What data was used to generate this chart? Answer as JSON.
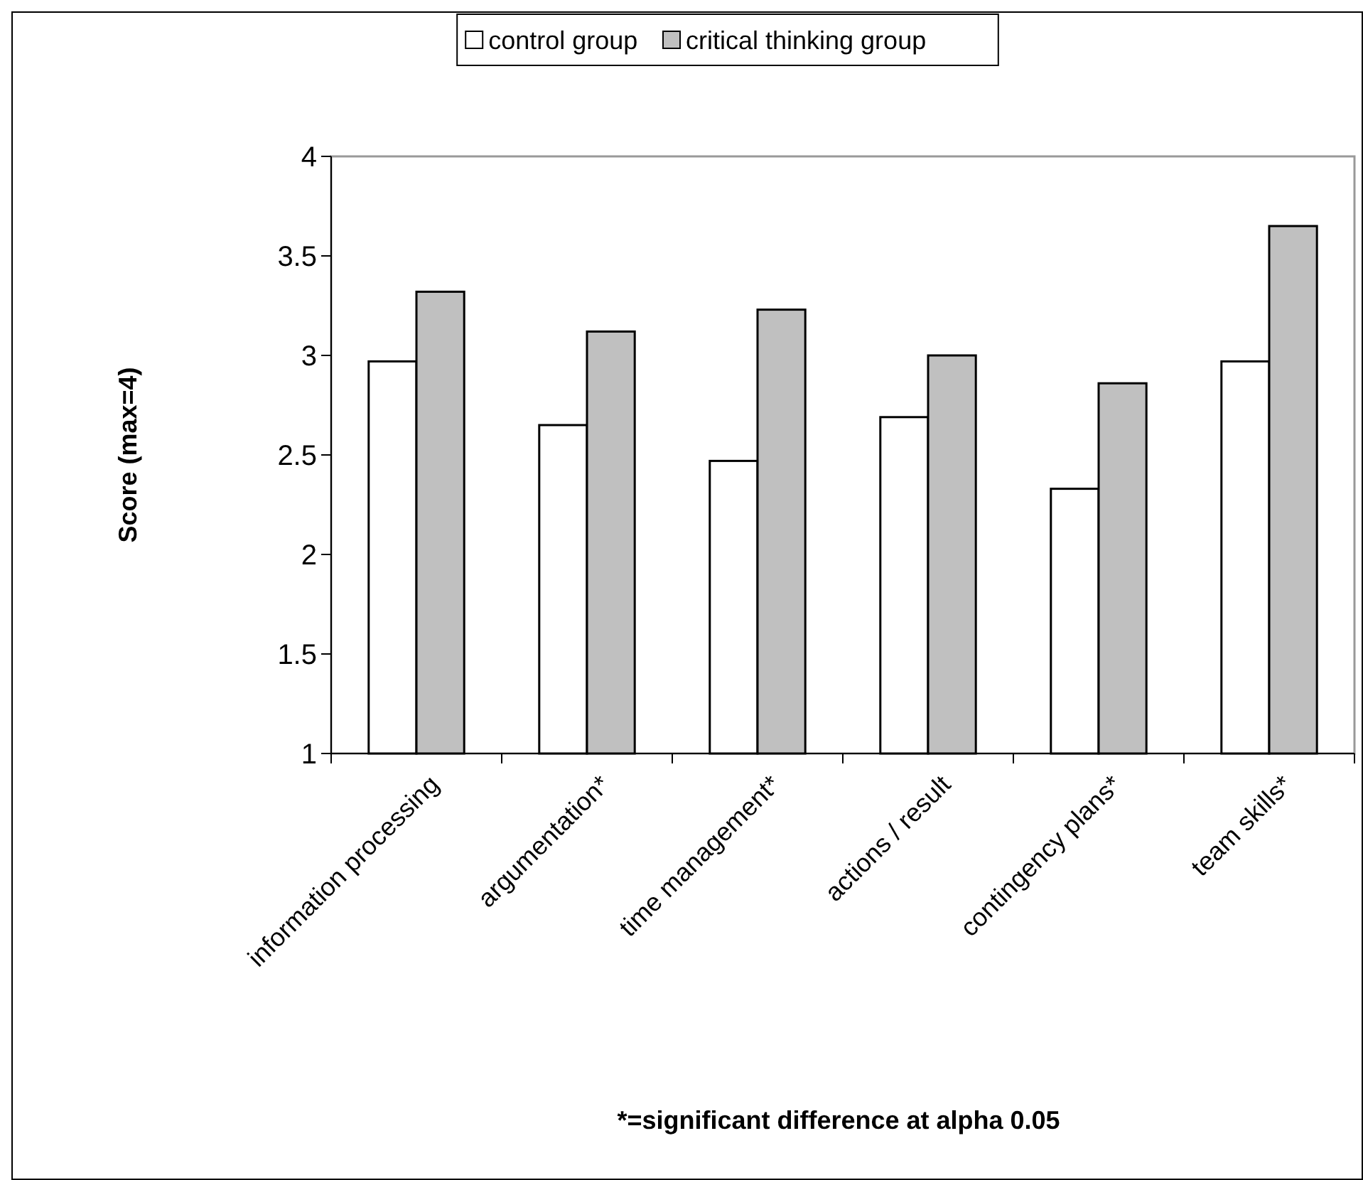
{
  "chart_data": {
    "type": "bar",
    "ylabel": "Score (max=4)",
    "categories": [
      "information processing",
      "argumentation*",
      "time management*",
      "actions / result",
      "contingency plans*",
      "team skills*"
    ],
    "series": [
      {
        "name": "control group",
        "color": "#ffffff",
        "values": [
          2.97,
          2.65,
          2.47,
          2.69,
          2.33,
          2.97
        ]
      },
      {
        "name": "critical thinking group",
        "color": "#c0c0c0",
        "values": [
          3.32,
          3.12,
          3.23,
          3.0,
          2.86,
          3.65
        ]
      }
    ],
    "ylim": [
      1,
      4
    ],
    "yticks": [
      1,
      1.5,
      2,
      2.5,
      3,
      3.5,
      4
    ],
    "grid": false,
    "legend": "top",
    "annotations": [
      "*=significant difference at alpha 0.05"
    ]
  }
}
